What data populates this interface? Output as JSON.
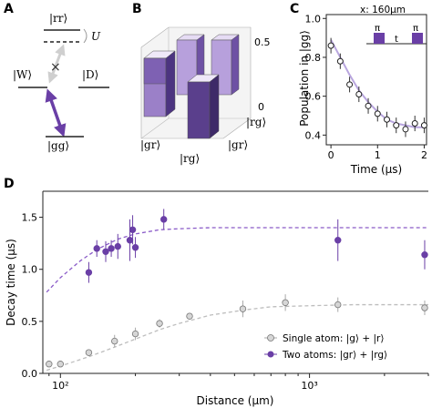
{
  "panels": {
    "A": {
      "letter": "A",
      "levels": {
        "rr": "|rr⟩",
        "W": "|W⟩",
        "D": "|D⟩",
        "gg": "|gg⟩",
        "U": "U"
      }
    },
    "B": {
      "letter": "B",
      "z_ticks": [
        "0.5",
        "0"
      ],
      "axis_labels": [
        "|gr⟩",
        "|rg⟩",
        "|gr⟩",
        "|rg⟩"
      ],
      "colors": {
        "light": "#c7b6e4",
        "mid": "#9b80c8",
        "dark": "#5a3f8c",
        "darker": "#3e2a68"
      }
    },
    "C": {
      "letter": "C",
      "inset": {
        "distance": "x: 160μm",
        "pulse1": "π",
        "gap": "t",
        "pulse2": "π"
      }
    },
    "D": {
      "letter": "D",
      "legend": {
        "single": "Single atom: |g⟩ + |r⟩",
        "two": "Two atoms: |gr⟩ + |rg⟩"
      }
    }
  },
  "chart_data": [
    {
      "panel": "C",
      "type": "scatter",
      "xlabel": "Time (μs)",
      "ylabel": "Population in |gg⟩",
      "xlim": [
        -0.1,
        2.05
      ],
      "ylim": [
        0.35,
        1.02
      ],
      "xticks": [
        "0",
        "1",
        "2"
      ],
      "yticks": [
        "0.4",
        "0.6",
        "0.8",
        "1.0"
      ],
      "series": [
        {
          "x": [
            0.0,
            0.2,
            0.4,
            0.6,
            0.8,
            1.0,
            1.2,
            1.4,
            1.6,
            1.8,
            2.0
          ],
          "y": [
            0.86,
            0.78,
            0.66,
            0.61,
            0.55,
            0.51,
            0.48,
            0.45,
            0.43,
            0.46,
            0.45
          ],
          "err": [
            0.04,
            0.04,
            0.04,
            0.04,
            0.04,
            0.04,
            0.04,
            0.04,
            0.04,
            0.04,
            0.04
          ]
        }
      ],
      "fit": {
        "x": [
          0.0,
          0.2,
          0.4,
          0.6,
          0.8,
          1.0,
          1.2,
          1.4,
          1.6,
          1.8,
          2.0
        ],
        "y": [
          0.89,
          0.8,
          0.71,
          0.63,
          0.57,
          0.52,
          0.48,
          0.46,
          0.45,
          0.44,
          0.44
        ]
      },
      "colors": {
        "fit": "#b9a6df",
        "marker": "#222222"
      }
    },
    {
      "panel": "D",
      "type": "scatter",
      "xlabel": "Distance (μm)",
      "ylabel": "Decay time (μs)",
      "xscale": "log",
      "xlim": [
        85,
        3000
      ],
      "ylim": [
        0,
        1.75
      ],
      "xticks": [
        {
          "value": 100,
          "label": "10²"
        },
        {
          "value": 1000,
          "label": "10³"
        }
      ],
      "yticks": [
        "0.0",
        "0.5",
        "1.0",
        "1.5"
      ],
      "series": [
        {
          "name": "Two atoms: |gr⟩ + |rg⟩",
          "color": "#6a3fa6",
          "x": [
            130,
            140,
            152,
            160,
            170,
            190,
            195,
            200,
            260,
            1300,
            2900
          ],
          "y": [
            0.97,
            1.2,
            1.17,
            1.2,
            1.22,
            1.28,
            1.38,
            1.21,
            1.48,
            1.28,
            1.14
          ],
          "err": [
            0.1,
            0.08,
            0.1,
            0.08,
            0.12,
            0.2,
            0.14,
            0.1,
            0.1,
            0.2,
            0.14
          ]
        },
        {
          "name": "Single atom: |g⟩ + |r⟩",
          "color": "#b3b3b3",
          "x": [
            90,
            100,
            130,
            165,
            200,
            250,
            330,
            540,
            800,
            1300,
            2900
          ],
          "y": [
            0.09,
            0.09,
            0.2,
            0.31,
            0.38,
            0.48,
            0.55,
            0.62,
            0.68,
            0.66,
            0.63
          ],
          "err": [
            0.03,
            0.03,
            0.03,
            0.06,
            0.06,
            0.04,
            0.03,
            0.08,
            0.08,
            0.07,
            0.07
          ]
        }
      ],
      "fits": [
        {
          "color": "#8a5bc8",
          "x": [
            88,
            100,
            120,
            140,
            170,
            200,
            250,
            300,
            400,
            600,
            1000,
            1500,
            2000,
            3000
          ],
          "y": [
            0.78,
            0.92,
            1.08,
            1.19,
            1.29,
            1.34,
            1.38,
            1.39,
            1.4,
            1.4,
            1.4,
            1.4,
            1.4,
            1.4
          ]
        },
        {
          "color": "#bdbdbd",
          "x": [
            88,
            100,
            130,
            160,
            200,
            250,
            300,
            400,
            550,
            700,
            1000,
            1500,
            2000,
            3000
          ],
          "y": [
            0.03,
            0.07,
            0.16,
            0.24,
            0.33,
            0.42,
            0.48,
            0.56,
            0.61,
            0.64,
            0.65,
            0.66,
            0.66,
            0.66
          ]
        }
      ]
    }
  ]
}
